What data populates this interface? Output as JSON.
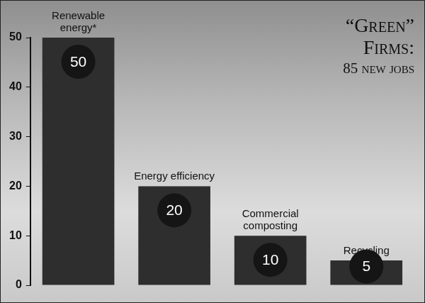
{
  "chart_data": {
    "type": "bar",
    "title": "“Green” Firms:",
    "subtitle": "85 new jobs",
    "categories": [
      "Renewable energy*",
      "Energy efficiency",
      "Commercial composting",
      "Recycling"
    ],
    "values": [
      50,
      20,
      10,
      5
    ],
    "color": "#2e2e2e",
    "ylim": [
      0,
      50
    ],
    "yticks": [
      0,
      10,
      20,
      30,
      40,
      50
    ],
    "grid": false,
    "data_labels": true,
    "tick_labels": "y"
  }
}
